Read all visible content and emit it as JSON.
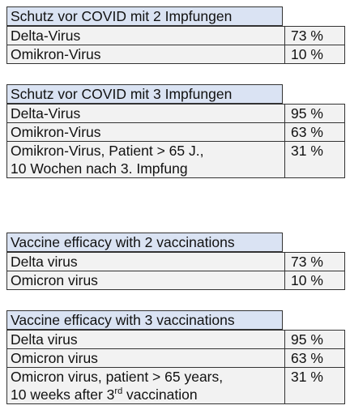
{
  "blocks": [
    {
      "header": "Schutz vor COVID mit 2 Impfungen",
      "rows": [
        {
          "label_lines": [
            "Delta-Virus"
          ],
          "value": "73 %"
        },
        {
          "label_lines": [
            "Omikron-Virus"
          ],
          "value": "10 %"
        }
      ]
    },
    {
      "header": "Schutz vor COVID mit 3 Impfungen",
      "rows": [
        {
          "label_lines": [
            "Delta-Virus"
          ],
          "value": "95 %"
        },
        {
          "label_lines": [
            "Omikron-Virus"
          ],
          "value": "63 %"
        },
        {
          "label_lines": [
            "Omikron-Virus, Patient > 65 J.,",
            "10 Wochen nach 3. Impfung"
          ],
          "value": "31 %"
        }
      ]
    },
    {
      "header": "Vaccine efficacy with 2 vaccinations",
      "rows": [
        {
          "label_lines": [
            "Delta virus"
          ],
          "value": "73 %"
        },
        {
          "label_lines": [
            "Omicron virus"
          ],
          "value": "10 %"
        }
      ]
    },
    {
      "header": "Vaccine efficacy with 3 vaccinations",
      "rows": [
        {
          "label_lines": [
            "Delta virus"
          ],
          "value": "95 %"
        },
        {
          "label_lines": [
            "Omicron virus"
          ],
          "value": "63 %"
        },
        {
          "label_lines": [
            "Omicron virus, patient > 65 years,"
          ],
          "value": "31 %",
          "last_line": {
            "before": "10 weeks after 3",
            "sup": "rd",
            "after": " vaccination"
          }
        }
      ]
    }
  ]
}
